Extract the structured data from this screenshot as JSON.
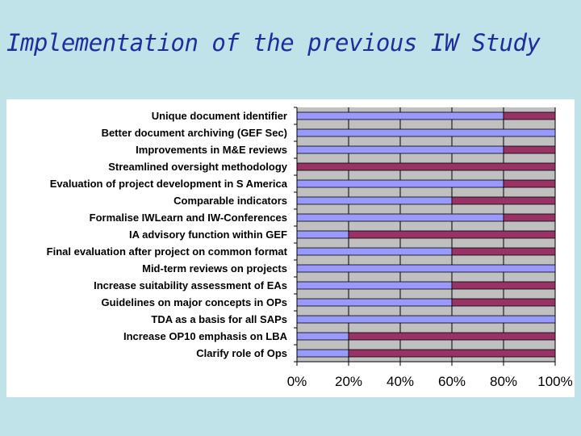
{
  "slide": {
    "title": "Implementation of the previous IW Study"
  },
  "colors": {
    "background": "#bfe3e8",
    "title": "#1d2f9c",
    "plot_background": "#c0c0c0",
    "implemented": "#9999ff",
    "not_implemented": "#993366"
  },
  "chart_data": {
    "type": "bar",
    "orientation": "horizontal",
    "stacked": "percent",
    "title": "",
    "xlabel": "",
    "ylabel": "",
    "xlim": [
      0,
      100
    ],
    "x_ticks": [
      "0%",
      "20%",
      "40%",
      "60%",
      "80%",
      "100%"
    ],
    "grid": "vertical",
    "legend": "none",
    "categories": [
      "Unique document identifier",
      "Better document archiving (GEF Sec)",
      "Improvements in M&E reviews",
      "Streamlined oversight methodology",
      "Evaluation of project development in S America",
      "Comparable indicators",
      "Formalise IWLearn and IW-Conferences",
      "IA advisory function within GEF",
      "Final evaluation after project on common format",
      "Mid-term reviews on projects",
      "Increase suitability assessment of EAs",
      "Guidelines on major concepts in OPs",
      "TDA as a basis for all SAPs",
      "Increase OP10 emphasis on LBA",
      "Clarify role of Ops"
    ],
    "series": [
      {
        "color": "#9999ff",
        "values": [
          80,
          100,
          80,
          0,
          80,
          60,
          80,
          20,
          60,
          100,
          60,
          60,
          100,
          20,
          20
        ]
      },
      {
        "color": "#993366",
        "values": [
          20,
          0,
          20,
          100,
          20,
          40,
          20,
          80,
          40,
          0,
          40,
          40,
          0,
          80,
          80
        ]
      }
    ]
  }
}
